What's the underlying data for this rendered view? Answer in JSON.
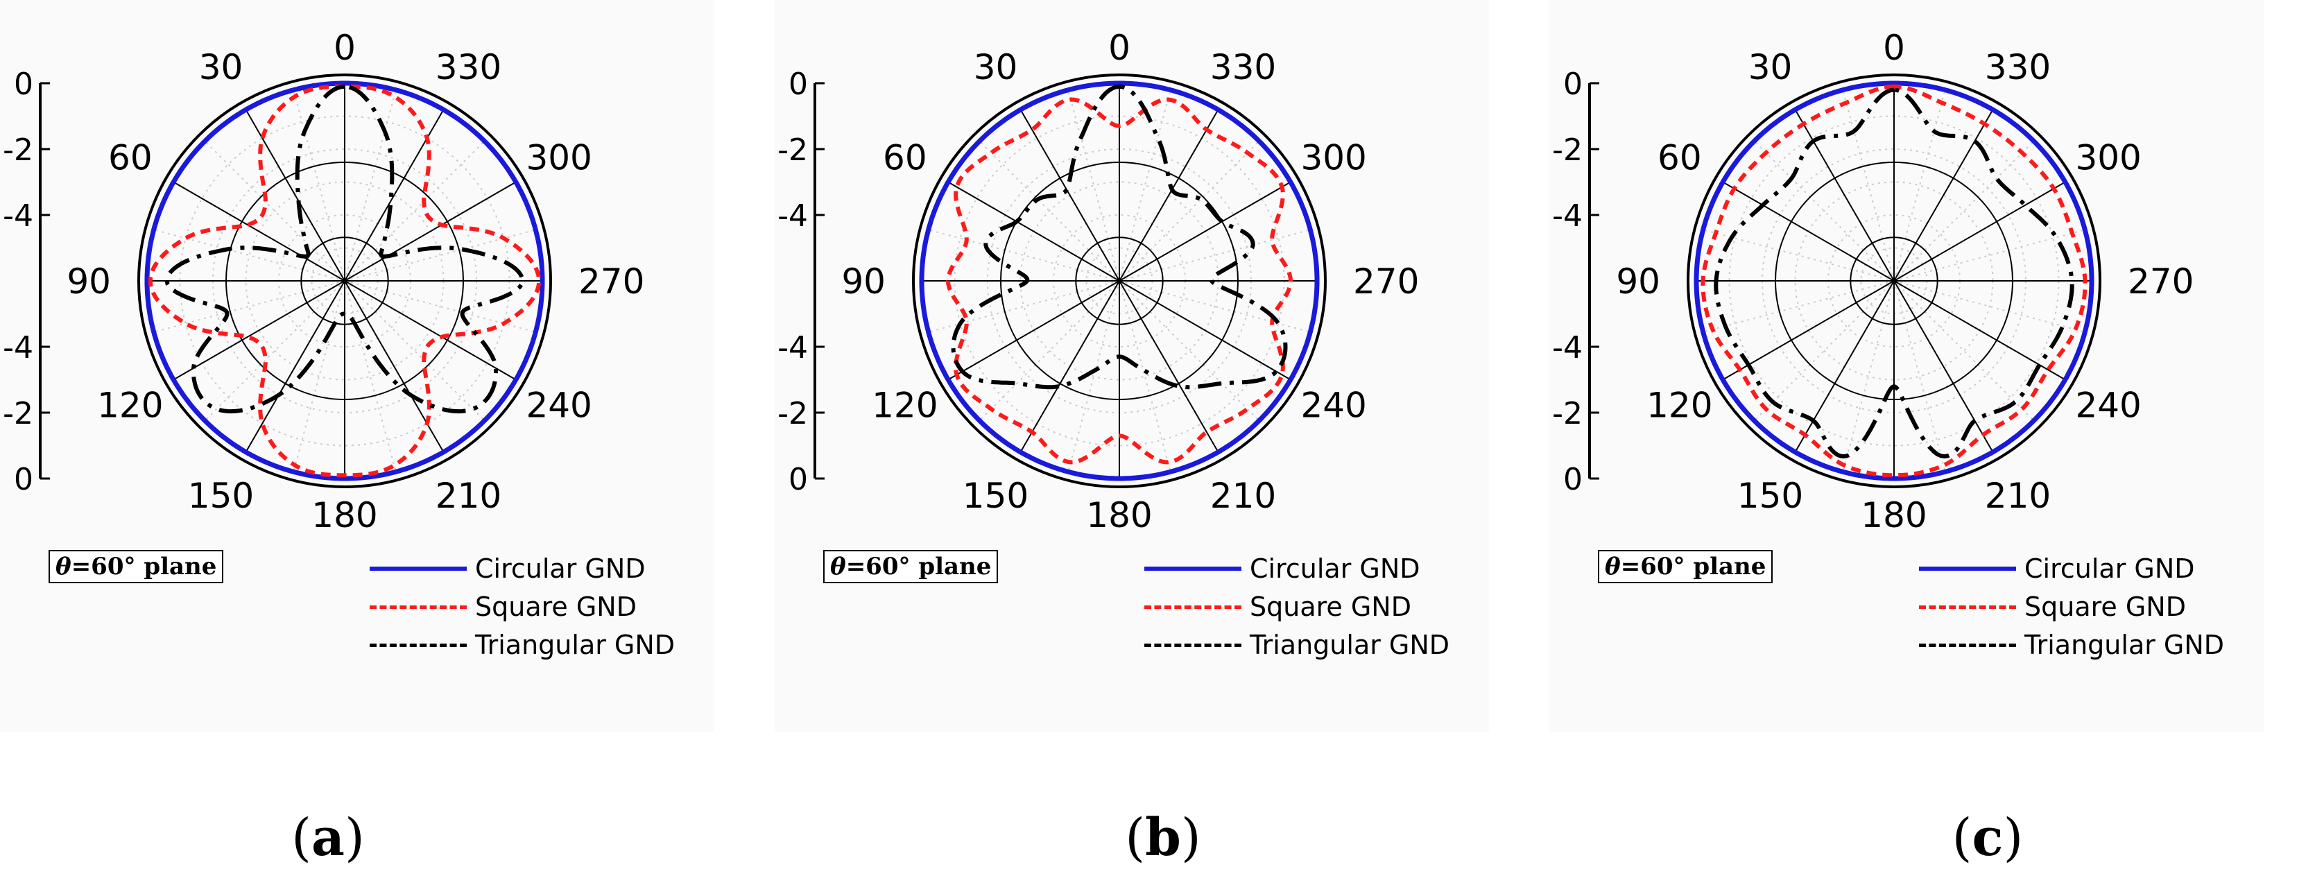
{
  "figure": {
    "colors": {
      "circular": "#1a1adc",
      "square": "#ff1a1a",
      "triangular": "#000000"
    },
    "panels": [
      {
        "caption_open": "(",
        "caption_letter": "a",
        "caption_close": ")",
        "plane_symbol": "θ",
        "plane_text": "=60° plane"
      },
      {
        "caption_open": "(",
        "caption_letter": "b",
        "caption_close": ")",
        "plane_symbol": "θ",
        "plane_text": "=60° plane"
      },
      {
        "caption_open": "(",
        "caption_letter": "c",
        "caption_close": ")",
        "plane_symbol": "θ",
        "plane_text": "=60° plane"
      }
    ],
    "legend": [
      {
        "label": "Circular GND",
        "style": "solid",
        "color_key": "circular"
      },
      {
        "label": "Square GND",
        "style": "dotted",
        "color_key": "square"
      },
      {
        "label": "Triangular GND",
        "style": "dashdot",
        "color_key": "triangular"
      }
    ]
  },
  "chart_data": [
    {
      "type": "polar-line",
      "panel": "(a)",
      "angular_ticks": [
        "0",
        "30",
        "60",
        "90",
        "120",
        "150",
        "180",
        "210",
        "240",
        "270",
        "300",
        "330"
      ],
      "angular_direction": "counterclockwise",
      "radial_ticks": [
        "0",
        "-2",
        "-4",
        "-4",
        "-2",
        "0"
      ],
      "radial_tick_values": [
        0,
        -2,
        -4,
        -4,
        -2,
        0
      ],
      "rlim": [
        -6,
        0
      ],
      "angles_deg": [
        0,
        15,
        30,
        45,
        60,
        75,
        90,
        105,
        120,
        135,
        150,
        165,
        180,
        195,
        210,
        225,
        240,
        255,
        270,
        285,
        300,
        315,
        330,
        345
      ],
      "series": [
        {
          "name": "Circular GND",
          "values": [
            0,
            0,
            0,
            0,
            0,
            0,
            0,
            0,
            0,
            0,
            0,
            0,
            0,
            0,
            0,
            0,
            0,
            0,
            0,
            0,
            0,
            0,
            0,
            0
          ]
        },
        {
          "name": "Square GND",
          "values": [
            -0.1,
            -0.2,
            -1.0,
            -2.6,
            -2.6,
            -1.0,
            -0.1,
            -1.0,
            -2.6,
            -2.6,
            -1.0,
            -0.2,
            -0.1,
            -0.2,
            -1.0,
            -2.6,
            -2.6,
            -1.0,
            -0.1,
            -1.0,
            -2.6,
            -2.6,
            -1.0,
            -0.2
          ]
        },
        {
          "name": "Triangular GND",
          "values": [
            -0.1,
            -1.3,
            -3.2,
            -4.3,
            -4.5,
            -2.3,
            -0.6,
            -2.3,
            -0.7,
            -0.5,
            -2.0,
            -4.5,
            -5.0,
            -4.5,
            -2.0,
            -0.5,
            -0.7,
            -2.3,
            -0.6,
            -2.3,
            -4.5,
            -4.3,
            -3.2,
            -1.3
          ]
        }
      ]
    },
    {
      "type": "polar-line",
      "panel": "(b)",
      "angular_ticks": [
        "0",
        "30",
        "60",
        "90",
        "120",
        "150",
        "180",
        "210",
        "240",
        "270",
        "300",
        "330"
      ],
      "angular_direction": "counterclockwise",
      "radial_ticks": [
        "0",
        "-2",
        "-4",
        "-4",
        "-2",
        "0"
      ],
      "radial_tick_values": [
        0,
        -2,
        -4,
        -4,
        -2,
        0
      ],
      "rlim": [
        -6,
        0
      ],
      "angles_deg": [
        0,
        15,
        30,
        45,
        60,
        75,
        90,
        105,
        120,
        135,
        150,
        165,
        180,
        195,
        210,
        225,
        240,
        255,
        270,
        285,
        300,
        315,
        330,
        345
      ],
      "series": [
        {
          "name": "Circular GND",
          "values": [
            0,
            0,
            0,
            0,
            0,
            0,
            0,
            0,
            0,
            0,
            0,
            0,
            0,
            0,
            0,
            0,
            0,
            0,
            0,
            0,
            0,
            0,
            0,
            0
          ]
        },
        {
          "name": "Square GND",
          "values": [
            -1.3,
            -0.3,
            -0.7,
            -0.5,
            -0.3,
            -1.2,
            -0.8,
            -1.2,
            -0.3,
            -0.5,
            -0.7,
            -0.3,
            -1.3,
            -0.3,
            -0.7,
            -0.5,
            -0.3,
            -1.2,
            -0.8,
            -1.2,
            -0.3,
            -0.5,
            -0.7,
            -0.3
          ]
        },
        {
          "name": "Triangular GND",
          "values": [
            -0.1,
            -1.5,
            -2.8,
            -2.5,
            -2.4,
            -1.8,
            -3.2,
            -1.0,
            -0.5,
            -1.6,
            -2.3,
            -3.2,
            -3.7,
            -3.2,
            -2.3,
            -1.6,
            -0.5,
            -1.0,
            -3.2,
            -1.8,
            -2.4,
            -2.5,
            -2.8,
            -1.5
          ]
        }
      ]
    },
    {
      "type": "polar-line",
      "panel": "(c)",
      "angular_ticks": [
        "0",
        "30",
        "60",
        "90",
        "120",
        "150",
        "180",
        "210",
        "240",
        "270",
        "300",
        "330"
      ],
      "angular_direction": "counterclockwise",
      "radial_ticks": [
        "0",
        "-2",
        "-4",
        "-4",
        "-2",
        "0"
      ],
      "radial_tick_values": [
        0,
        -2,
        -4,
        -4,
        -2,
        0
      ],
      "rlim": [
        -6,
        0
      ],
      "angles_deg": [
        0,
        15,
        30,
        45,
        60,
        75,
        90,
        105,
        120,
        135,
        150,
        165,
        180,
        195,
        210,
        225,
        240,
        255,
        270,
        285,
        300,
        315,
        330,
        345
      ],
      "series": [
        {
          "name": "Circular GND",
          "values": [
            0,
            0,
            0,
            0,
            0,
            0,
            0,
            0,
            0,
            0,
            0,
            0,
            0,
            0,
            0,
            0,
            0,
            0,
            0,
            0,
            0,
            0,
            0,
            0
          ]
        },
        {
          "name": "Square GND",
          "values": [
            -0.1,
            -0.4,
            -0.5,
            -0.5,
            -0.4,
            -0.4,
            -0.2,
            -0.3,
            -0.6,
            -0.5,
            -0.6,
            -0.2,
            -0.1,
            -0.2,
            -0.6,
            -0.5,
            -0.6,
            -0.3,
            -0.2,
            -0.4,
            -0.4,
            -0.5,
            -0.5,
            -0.4
          ]
        },
        {
          "name": "Triangular GND",
          "values": [
            -0.2,
            -1.3,
            -1.1,
            -1.6,
            -1.4,
            -0.9,
            -0.6,
            -0.7,
            -0.9,
            -0.8,
            -1.1,
            -0.5,
            -2.8,
            -0.5,
            -1.1,
            -0.8,
            -0.9,
            -0.7,
            -0.6,
            -0.9,
            -1.4,
            -1.6,
            -1.1,
            -1.3
          ]
        }
      ]
    }
  ]
}
